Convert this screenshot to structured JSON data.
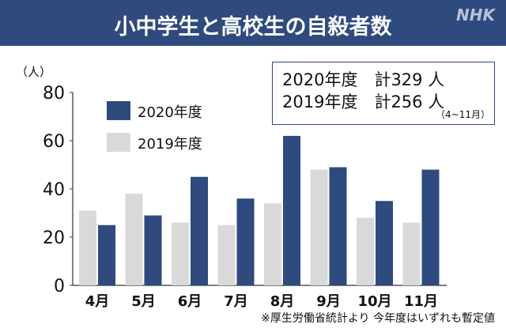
{
  "header": {
    "title": "小中学生と高校生の自殺者数",
    "logo": "NHK"
  },
  "totals": {
    "line1": "2020年度　計329 人",
    "line2": "2019年度　計256 人",
    "period": "（4~11月）"
  },
  "footnote": "※厚生労働省統計より 今年度はいずれも暫定値",
  "chart_data": {
    "type": "bar",
    "title": "小中学生と高校生の自殺者数",
    "ylabel": "（人）",
    "ylim": [
      0,
      80
    ],
    "yticks": [
      0,
      20,
      40,
      60,
      80
    ],
    "categories": [
      "4月",
      "5月",
      "6月",
      "7月",
      "8月",
      "9月",
      "10月",
      "11月"
    ],
    "series": [
      {
        "name": "2019年度",
        "color": "#d9d9d9",
        "values": [
          31,
          38,
          26,
          25,
          34,
          48,
          28,
          26
        ]
      },
      {
        "name": "2020年度",
        "color": "#2e4a7f",
        "values": [
          25,
          29,
          45,
          36,
          62,
          49,
          35,
          48
        ]
      }
    ],
    "legend": "top-left"
  }
}
